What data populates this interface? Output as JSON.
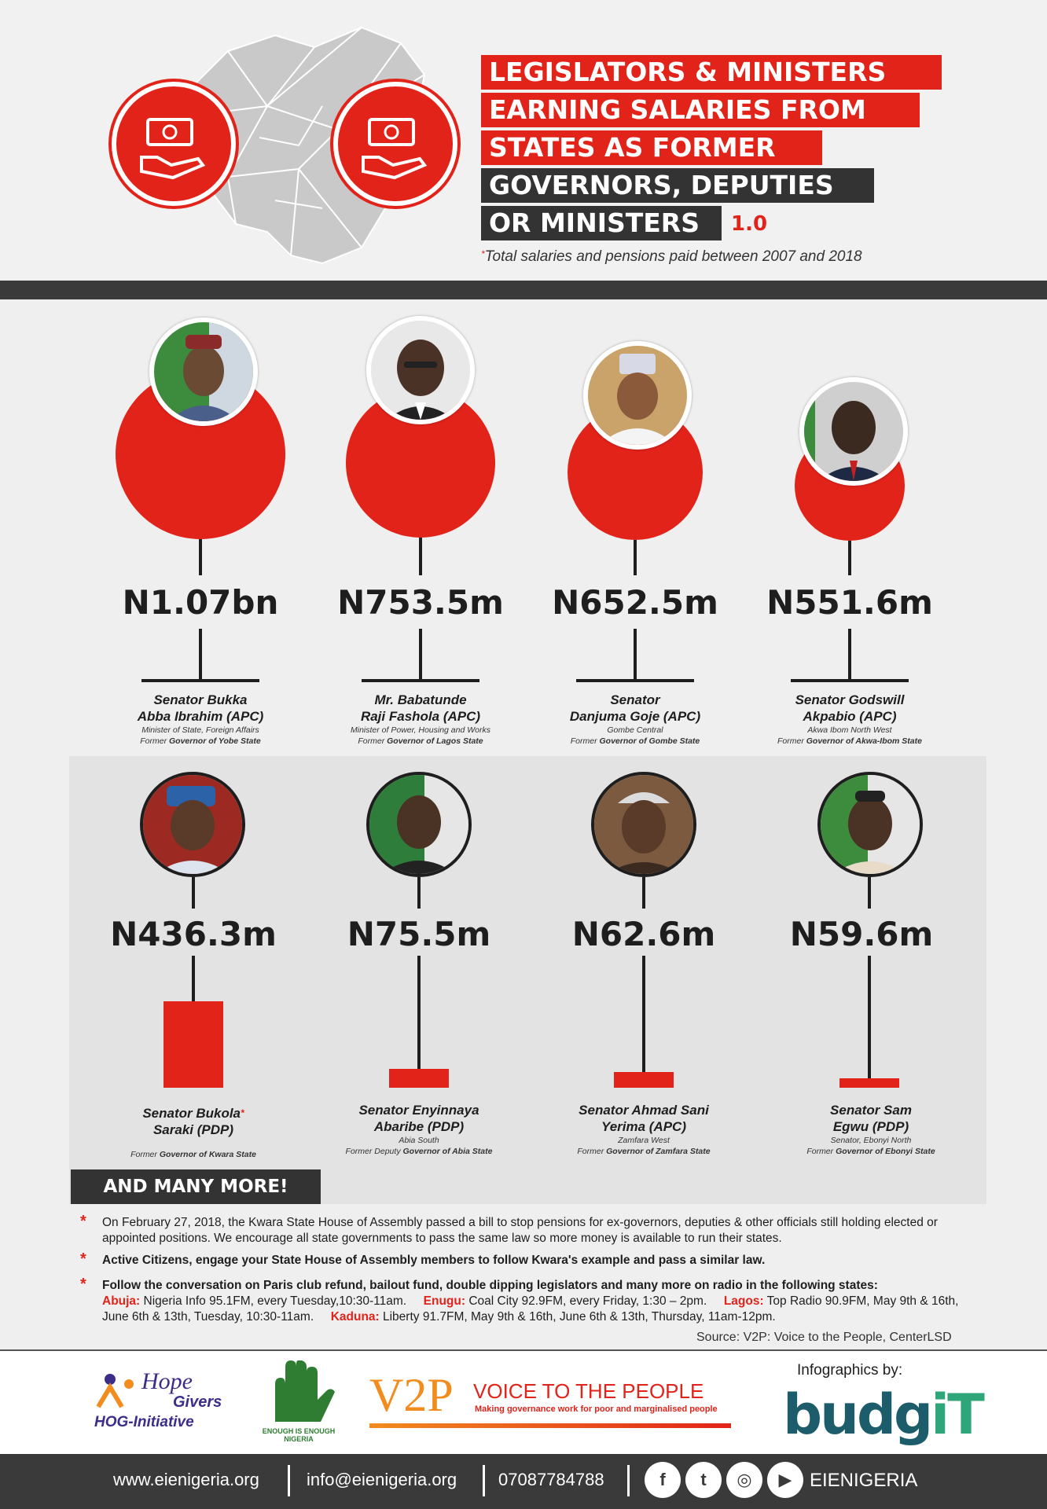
{
  "header": {
    "title_lines": [
      "LEGISLATORS & MINISTERS",
      "EARNING SALARIES FROM",
      "STATES AS FORMER",
      "GOVERNORS, DEPUTIES",
      "OR MINISTERS"
    ],
    "version": "1.0",
    "subtitle_star": "*",
    "subtitle": "Total salaries and pensions paid  between 2007 and 2018"
  },
  "top_row": [
    {
      "amount": "N1.07bn",
      "name1": "Senator Bukka",
      "name2": "Abba Ibrahim (APC)",
      "role1": "Minister of State, Foreign Affairs",
      "role2_prefix": "Former ",
      "role2_bold": "Governor of  Yobe State"
    },
    {
      "amount": "N753.5m",
      "name1": "Mr. Babatunde",
      "name2": "Raji Fashola (APC)",
      "role1": "Minister of Power, Housing and Works",
      "role2_prefix": "Former ",
      "role2_bold": "Governor of Lagos State"
    },
    {
      "amount": "N652.5m",
      "name1": "Senator",
      "name2": "Danjuma Goje (APC)",
      "role1": "Gombe Central",
      "role2_prefix": "Former ",
      "role2_bold": "Governor of Gombe State"
    },
    {
      "amount": "N551.6m",
      "name1": "Senator Godswill",
      "name2": "Akpabio (APC)",
      "role1": "Akwa Ibom North West",
      "role2_prefix": "Former ",
      "role2_bold": "Governor of Akwa-Ibom State"
    }
  ],
  "bottom_row": [
    {
      "amount": "N436.3m",
      "name1": "Senator Bukola",
      "name1_star": "*",
      "name2": "Saraki (PDP)",
      "role1": "",
      "role2_prefix": "Former ",
      "role2_bold": "Governor of  Kwara State"
    },
    {
      "amount": "N75.5m",
      "name1": "Senator Enyinnaya",
      "name1_star": "",
      "name2": "Abaribe (PDP)",
      "role1": "Abia South",
      "role2_prefix": "Former Deputy ",
      "role2_bold": "Governor of  Abia State"
    },
    {
      "amount": "N62.6m",
      "name1": "Senator Ahmad Sani",
      "name1_star": "",
      "name2": "Yerima (APC)",
      "role1": "Zamfara West",
      "role2_prefix": "Former ",
      "role2_bold": "Governor of  Zamfara State"
    },
    {
      "amount": "N59.6m",
      "name1": "Senator Sam",
      "name1_star": "",
      "name2": "Egwu (PDP)",
      "role1": "Senator, Ebonyi North",
      "role2_prefix": "Former ",
      "role2_bold": "Governor of  Ebonyi State"
    }
  ],
  "more_label": "AND MANY MORE!",
  "notes": {
    "note1_a": "On February 27, 2018, the Kwara State House of Assembly passed a bill to stop pensions for ex-governors, deputies & other officials still holding elected or",
    "note1_b": "appointed positions. We encourage all state governments to pass the same law so more money is available to run their states.",
    "note2": "Active Citizens, engage your State House of Assembly members to follow Kwara's example and pass a similar law.",
    "note3": "Follow the conversation on Paris club refund, bailout fund, double dipping legislators and many more on radio in the following states:",
    "abuja_label": "Abuja:",
    "abuja": " Nigeria Info 95.1FM, every Tuesday,10:30-11am.",
    "enugu_label": "Enugu:",
    "enugu": " Coal City 92.9FM, every Friday, 1:30 – 2pm.",
    "lagos_label": "Lagos:",
    "lagos": " Top Radio 90.9FM, May 9th & 16th,",
    "lagos2": "June 6th & 13th, Tuesday, 10:30-11am.",
    "kaduna_label": "Kaduna:",
    "kaduna": " Liberty 91.7FM, May 9th & 16th, June 6th & 13th, Thursday, 11am-12pm."
  },
  "source": "Source: V2P: Voice to the People, CenterLSD",
  "logos": {
    "hog1": "Hope",
    "hog2": "Givers",
    "hog3": "HOG-Initiative",
    "eie": "ENOUGH IS ENOUGH NIGERIA",
    "v2p_big": "V2P",
    "v2p_title": "VOICE TO THE PEOPLE",
    "v2p_sub": "Making governance work for poor and marginalised people",
    "infographics_by": "Infographics by:",
    "budgit_a": "budg",
    "budgit_b": "iT"
  },
  "footer": {
    "website": "www.eienigeria.org",
    "email": "info@eienigeria.org",
    "phone": "07087784788",
    "handle": "EIENIGERIA",
    "social": [
      "f",
      "t",
      "◎",
      "▶"
    ]
  },
  "colors": {
    "red": "#e2231a",
    "dark": "#333333",
    "panel": "#e3e3e3"
  }
}
